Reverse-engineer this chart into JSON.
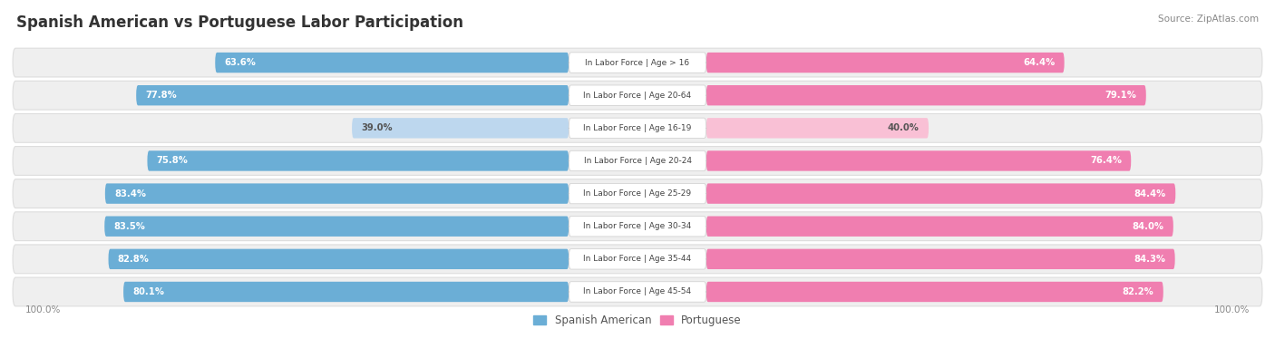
{
  "title": "Spanish American vs Portuguese Labor Participation",
  "source": "Source: ZipAtlas.com",
  "categories": [
    "In Labor Force | Age > 16",
    "In Labor Force | Age 20-64",
    "In Labor Force | Age 16-19",
    "In Labor Force | Age 20-24",
    "In Labor Force | Age 25-29",
    "In Labor Force | Age 30-34",
    "In Labor Force | Age 35-44",
    "In Labor Force | Age 45-54"
  ],
  "spanish_american": [
    63.6,
    77.8,
    39.0,
    75.8,
    83.4,
    83.5,
    82.8,
    80.1
  ],
  "portuguese": [
    64.4,
    79.1,
    40.0,
    76.4,
    84.4,
    84.0,
    84.3,
    82.2
  ],
  "blue_color": "#6BAED6",
  "pink_color": "#F07EB0",
  "blue_light": "#BDD7EE",
  "pink_light": "#F9C0D5",
  "row_bg": "#EFEFEF",
  "text_white": "#FFFFFF",
  "text_dark": "#555555",
  "title_color": "#333333",
  "source_color": "#888888",
  "legend_color": "#555555",
  "axis_label_color": "#888888",
  "figsize": [
    14.06,
    3.95
  ],
  "dpi": 100
}
